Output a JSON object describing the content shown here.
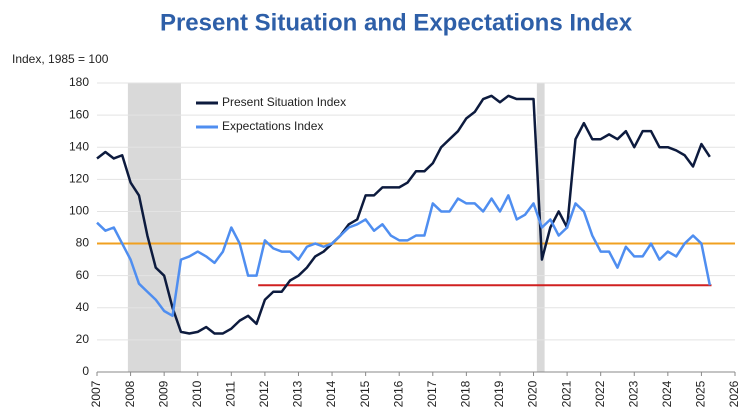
{
  "chart_data": {
    "type": "line",
    "title": "Present Situation and Expectations Index",
    "y_axis_label": "Index, 1985 = 100",
    "x": [
      2007,
      2007.25,
      2007.5,
      2007.75,
      2008,
      2008.25,
      2008.5,
      2008.75,
      2009,
      2009.25,
      2009.5,
      2009.75,
      2010,
      2010.25,
      2010.5,
      2010.75,
      2011,
      2011.25,
      2011.5,
      2011.75,
      2012,
      2012.25,
      2012.5,
      2012.75,
      2013,
      2013.25,
      2013.5,
      2013.75,
      2014,
      2014.25,
      2014.5,
      2014.75,
      2015,
      2015.25,
      2015.5,
      2015.75,
      2016,
      2016.25,
      2016.5,
      2016.75,
      2017,
      2017.25,
      2017.5,
      2017.75,
      2018,
      2018.25,
      2018.5,
      2018.75,
      2019,
      2019.25,
      2019.5,
      2019.75,
      2020,
      2020.25,
      2020.5,
      2020.75,
      2021,
      2021.25,
      2021.5,
      2021.75,
      2022,
      2022.25,
      2022.5,
      2022.75,
      2023,
      2023.25,
      2023.5,
      2023.75,
      2024,
      2024.25,
      2024.5,
      2024.75,
      2025,
      2025.25
    ],
    "series": [
      {
        "name": "Present Situation Index",
        "color": "#0d1b3e",
        "values": [
          133,
          137,
          133,
          135,
          118,
          110,
          85,
          65,
          60,
          40,
          25,
          24,
          25,
          28,
          24,
          24,
          27,
          32,
          35,
          30,
          45,
          50,
          50,
          57,
          60,
          65,
          72,
          75,
          80,
          85,
          92,
          95,
          110,
          110,
          115,
          115,
          115,
          118,
          125,
          125,
          130,
          140,
          145,
          150,
          158,
          162,
          170,
          172,
          168,
          172,
          170,
          170,
          170,
          70,
          90,
          100,
          90,
          145,
          155,
          145,
          145,
          148,
          145,
          150,
          140,
          150,
          150,
          140,
          140,
          138,
          135,
          128,
          142,
          134
        ]
      },
      {
        "name": "Expectations Index",
        "color": "#4f8ef0",
        "values": [
          93,
          88,
          90,
          80,
          70,
          55,
          50,
          45,
          38,
          35,
          70,
          72,
          75,
          72,
          68,
          75,
          90,
          80,
          60,
          60,
          82,
          77,
          75,
          75,
          70,
          78,
          80,
          78,
          80,
          85,
          90,
          92,
          95,
          88,
          92,
          85,
          82,
          82,
          85,
          85,
          105,
          100,
          100,
          108,
          105,
          105,
          100,
          108,
          100,
          110,
          95,
          98,
          105,
          90,
          95,
          85,
          90,
          105,
          100,
          85,
          75,
          75,
          65,
          78,
          72,
          72,
          80,
          70,
          75,
          72,
          80,
          85,
          80,
          54
        ]
      }
    ],
    "reference_lines": [
      {
        "value": 80,
        "color": "#f0a020",
        "xrange": [
          2007,
          2026
        ]
      },
      {
        "value": 54,
        "color": "#d02020",
        "xrange": [
          2011.8,
          2025.3
        ]
      }
    ],
    "shaded_regions": [
      [
        2007.92,
        2009.5
      ],
      [
        2020.1,
        2020.33
      ]
    ],
    "shade_color": "#d9d9d9",
    "xlim": [
      2007,
      2026
    ],
    "xticks": [
      2007,
      2008,
      2009,
      2010,
      2011,
      2012,
      2013,
      2014,
      2015,
      2016,
      2017,
      2018,
      2019,
      2020,
      2021,
      2022,
      2023,
      2024,
      2025,
      2026
    ],
    "ylim": [
      0,
      180
    ],
    "yticks": [
      0,
      20,
      40,
      60,
      80,
      100,
      120,
      140,
      160,
      180
    ],
    "grid": true
  }
}
